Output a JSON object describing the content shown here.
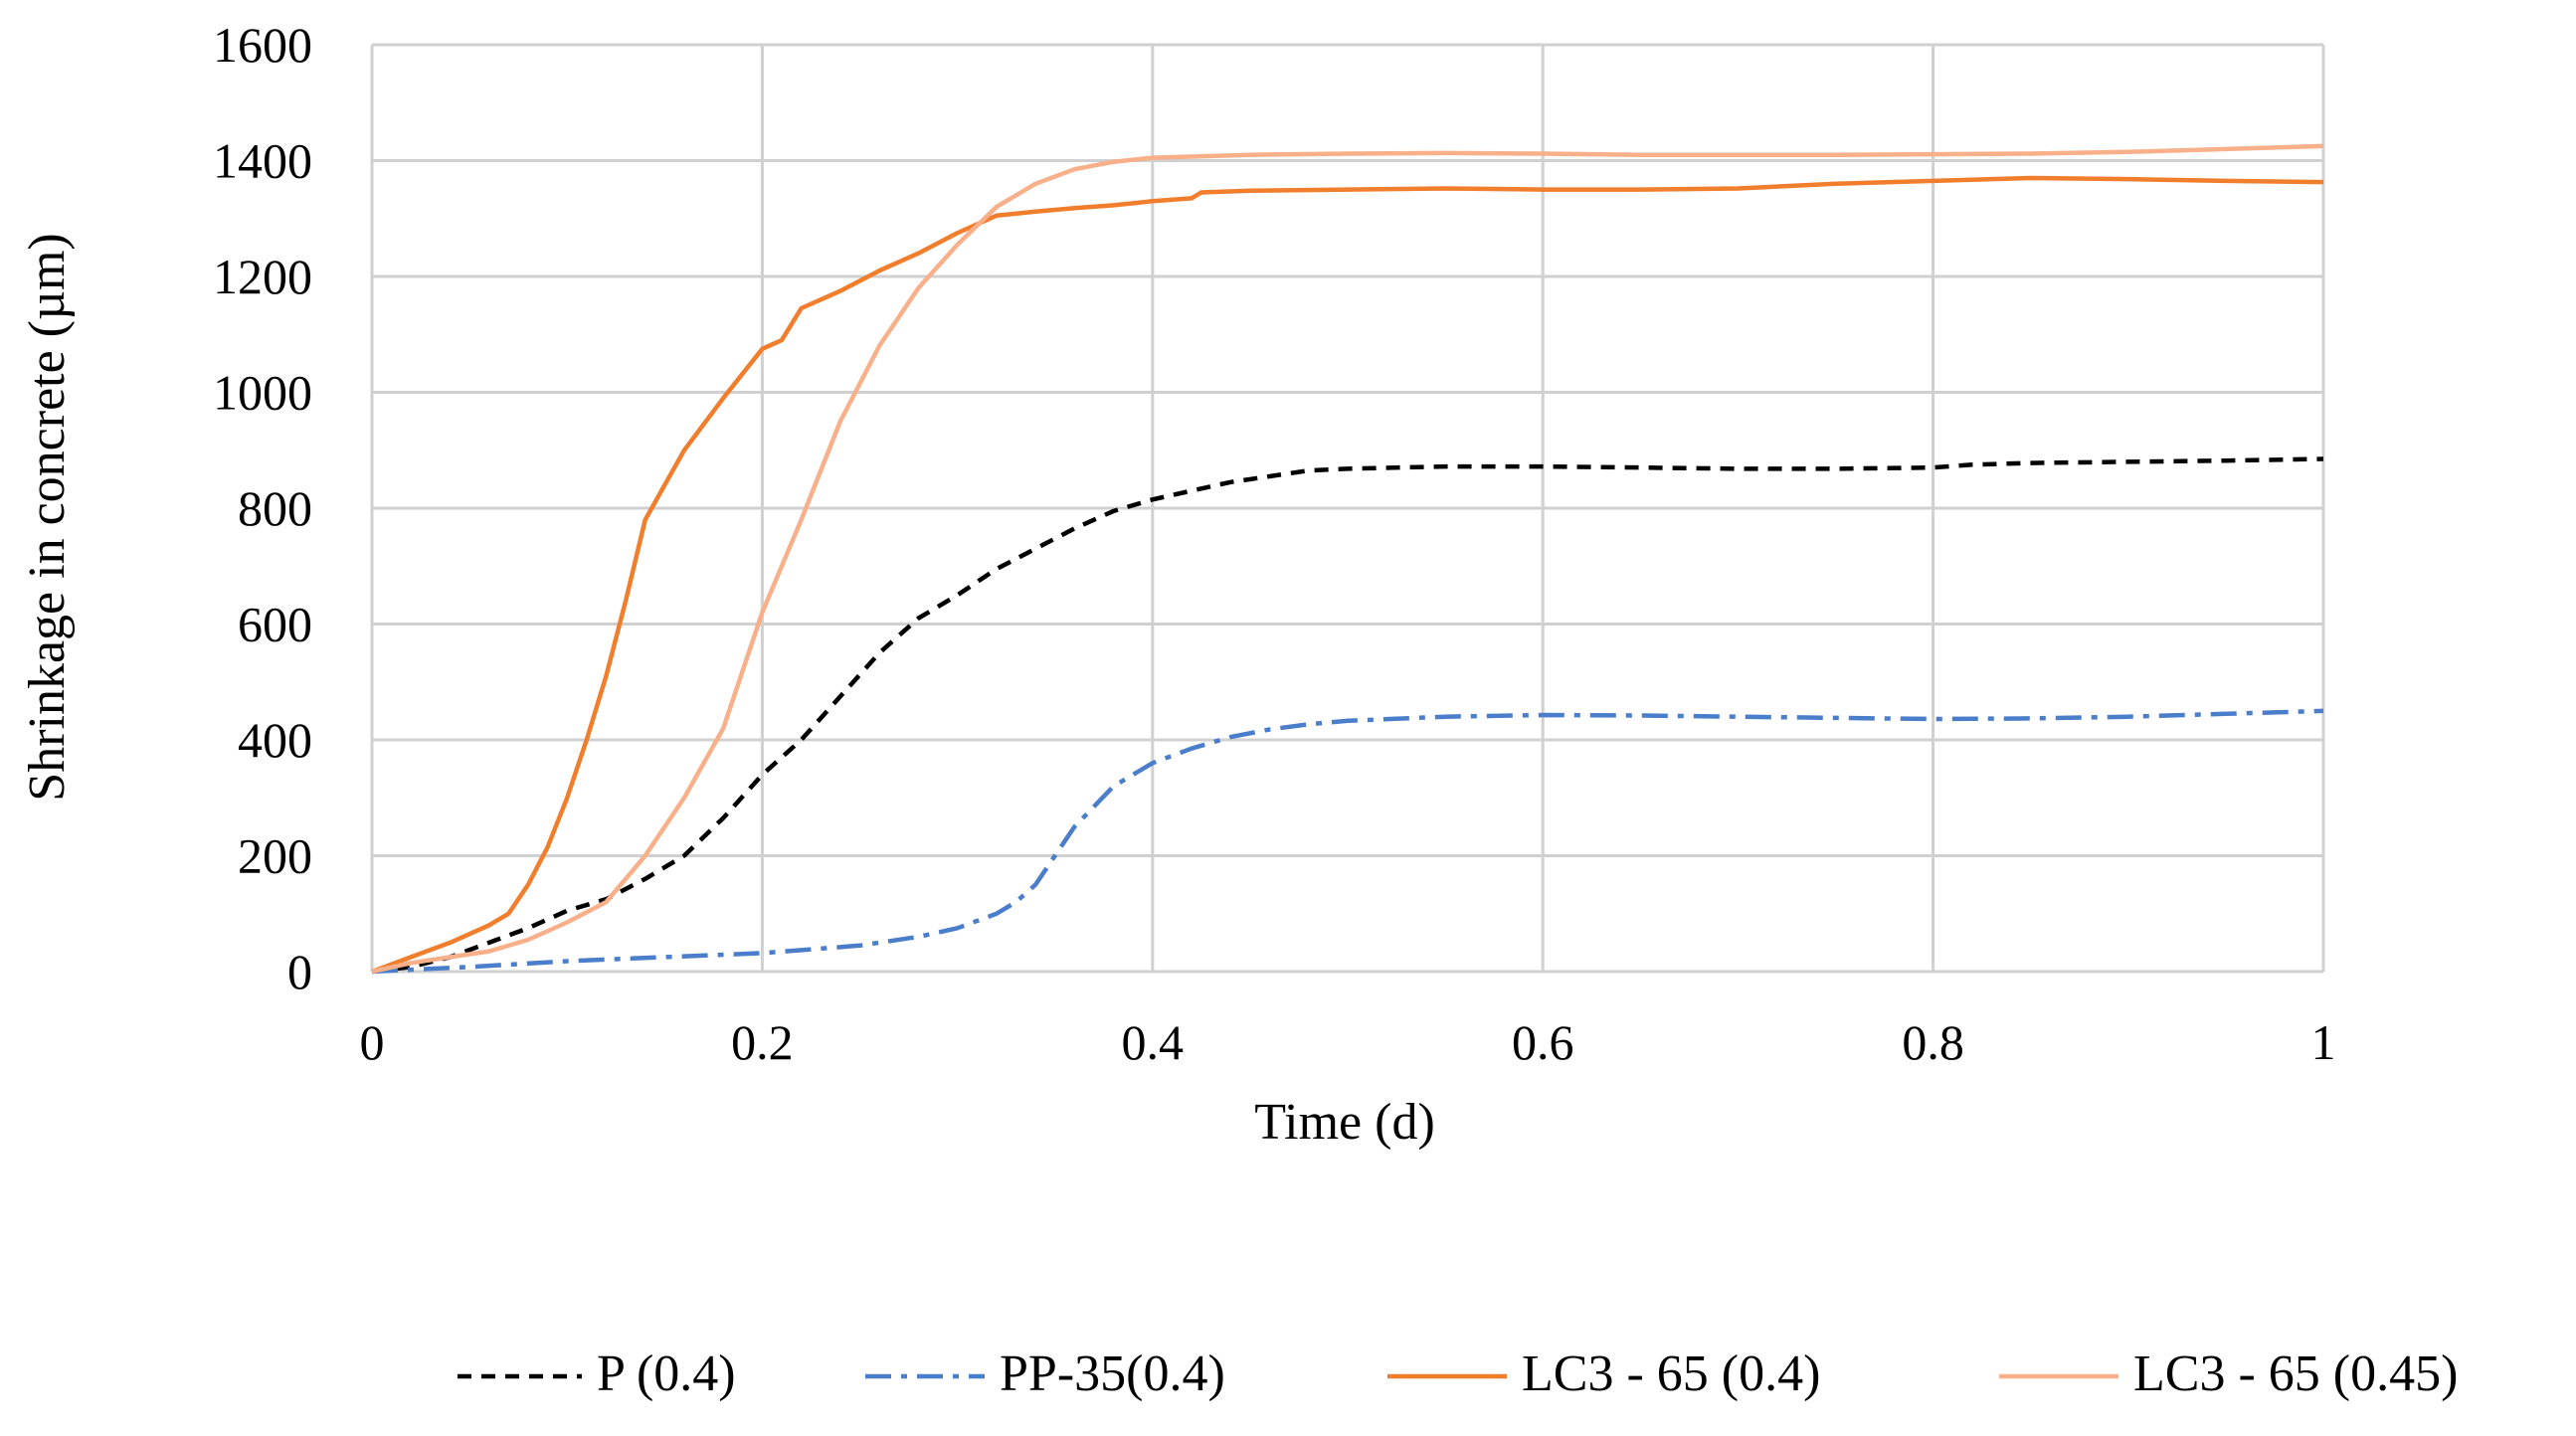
{
  "chart_data": {
    "type": "line",
    "title": "",
    "xlabel": "Time (d)",
    "ylabel": "Shrinkage in concrete (µm)",
    "xlim": [
      0,
      1
    ],
    "ylim": [
      0,
      1600
    ],
    "xticks": [
      0,
      0.2,
      0.4,
      0.6,
      0.8,
      1
    ],
    "xtick_labels": [
      "0",
      "0.2",
      "0.4",
      "0.6",
      "0.8",
      "1"
    ],
    "yticks": [
      0,
      200,
      400,
      600,
      800,
      1000,
      1200,
      1400,
      1600
    ],
    "ytick_labels": [
      "0",
      "200",
      "400",
      "600",
      "800",
      "1000",
      "1200",
      "1400",
      "1600"
    ],
    "grid": true,
    "legend_position": "bottom",
    "series": [
      {
        "name": "P (0.4)",
        "color": "#000000",
        "dash": "dashed",
        "points": [
          [
            0,
            0
          ],
          [
            0.02,
            8
          ],
          [
            0.04,
            25
          ],
          [
            0.06,
            50
          ],
          [
            0.08,
            75
          ],
          [
            0.1,
            105
          ],
          [
            0.12,
            125
          ],
          [
            0.14,
            160
          ],
          [
            0.16,
            200
          ],
          [
            0.18,
            265
          ],
          [
            0.2,
            340
          ],
          [
            0.22,
            400
          ],
          [
            0.24,
            475
          ],
          [
            0.26,
            550
          ],
          [
            0.28,
            610
          ],
          [
            0.3,
            650
          ],
          [
            0.32,
            695
          ],
          [
            0.34,
            730
          ],
          [
            0.36,
            765
          ],
          [
            0.38,
            795
          ],
          [
            0.4,
            815
          ],
          [
            0.42,
            830
          ],
          [
            0.44,
            845
          ],
          [
            0.46,
            855
          ],
          [
            0.48,
            865
          ],
          [
            0.5,
            868
          ],
          [
            0.55,
            872
          ],
          [
            0.6,
            872
          ],
          [
            0.65,
            870
          ],
          [
            0.7,
            868
          ],
          [
            0.75,
            868
          ],
          [
            0.8,
            870
          ],
          [
            0.82,
            875
          ],
          [
            0.85,
            878
          ],
          [
            0.9,
            880
          ],
          [
            0.95,
            882
          ],
          [
            1,
            885
          ]
        ]
      },
      {
        "name": "PP-35(0.4)",
        "color": "#4a7ecb",
        "dash": "dashdot",
        "points": [
          [
            0,
            0
          ],
          [
            0.05,
            8
          ],
          [
            0.1,
            18
          ],
          [
            0.15,
            25
          ],
          [
            0.2,
            32
          ],
          [
            0.25,
            45
          ],
          [
            0.28,
            60
          ],
          [
            0.3,
            75
          ],
          [
            0.32,
            100
          ],
          [
            0.33,
            120
          ],
          [
            0.34,
            150
          ],
          [
            0.35,
            200
          ],
          [
            0.36,
            250
          ],
          [
            0.38,
            320
          ],
          [
            0.4,
            360
          ],
          [
            0.42,
            385
          ],
          [
            0.44,
            405
          ],
          [
            0.46,
            418
          ],
          [
            0.48,
            427
          ],
          [
            0.5,
            433
          ],
          [
            0.55,
            440
          ],
          [
            0.6,
            443
          ],
          [
            0.65,
            442
          ],
          [
            0.7,
            440
          ],
          [
            0.75,
            438
          ],
          [
            0.8,
            436
          ],
          [
            0.85,
            437
          ],
          [
            0.9,
            440
          ],
          [
            0.95,
            445
          ],
          [
            1,
            450
          ]
        ]
      },
      {
        "name": "LC3 - 65 (0.4)",
        "color": "#f07e2c",
        "dash": "solid",
        "points": [
          [
            0,
            0
          ],
          [
            0.02,
            25
          ],
          [
            0.04,
            50
          ],
          [
            0.06,
            80
          ],
          [
            0.07,
            100
          ],
          [
            0.08,
            150
          ],
          [
            0.09,
            215
          ],
          [
            0.1,
            300
          ],
          [
            0.11,
            400
          ],
          [
            0.12,
            510
          ],
          [
            0.13,
            640
          ],
          [
            0.14,
            780
          ],
          [
            0.15,
            840
          ],
          [
            0.16,
            900
          ],
          [
            0.18,
            990
          ],
          [
            0.2,
            1075
          ],
          [
            0.21,
            1090
          ],
          [
            0.22,
            1145
          ],
          [
            0.24,
            1175
          ],
          [
            0.26,
            1210
          ],
          [
            0.28,
            1240
          ],
          [
            0.3,
            1275
          ],
          [
            0.32,
            1305
          ],
          [
            0.34,
            1312
          ],
          [
            0.36,
            1318
          ],
          [
            0.38,
            1323
          ],
          [
            0.4,
            1330
          ],
          [
            0.42,
            1335
          ],
          [
            0.425,
            1345
          ],
          [
            0.45,
            1348
          ],
          [
            0.5,
            1350
          ],
          [
            0.55,
            1352
          ],
          [
            0.6,
            1350
          ],
          [
            0.65,
            1350
          ],
          [
            0.7,
            1352
          ],
          [
            0.75,
            1360
          ],
          [
            0.8,
            1365
          ],
          [
            0.85,
            1370
          ],
          [
            0.9,
            1368
          ],
          [
            0.95,
            1365
          ],
          [
            1,
            1363
          ]
        ]
      },
      {
        "name": "LC3 - 65 (0.45)",
        "color": "#f8b08a",
        "dash": "solid",
        "points": [
          [
            0,
            0
          ],
          [
            0.02,
            15
          ],
          [
            0.04,
            25
          ],
          [
            0.06,
            35
          ],
          [
            0.08,
            55
          ],
          [
            0.1,
            85
          ],
          [
            0.12,
            120
          ],
          [
            0.14,
            200
          ],
          [
            0.16,
            300
          ],
          [
            0.18,
            420
          ],
          [
            0.2,
            620
          ],
          [
            0.22,
            780
          ],
          [
            0.24,
            950
          ],
          [
            0.26,
            1080
          ],
          [
            0.28,
            1180
          ],
          [
            0.3,
            1255
          ],
          [
            0.32,
            1320
          ],
          [
            0.34,
            1360
          ],
          [
            0.36,
            1385
          ],
          [
            0.38,
            1398
          ],
          [
            0.4,
            1405
          ],
          [
            0.45,
            1410
          ],
          [
            0.5,
            1412
          ],
          [
            0.55,
            1413
          ],
          [
            0.6,
            1412
          ],
          [
            0.65,
            1410
          ],
          [
            0.7,
            1410
          ],
          [
            0.75,
            1410
          ],
          [
            0.8,
            1411
          ],
          [
            0.85,
            1412
          ],
          [
            0.9,
            1415
          ],
          [
            0.95,
            1420
          ],
          [
            1,
            1425
          ]
        ]
      }
    ]
  }
}
